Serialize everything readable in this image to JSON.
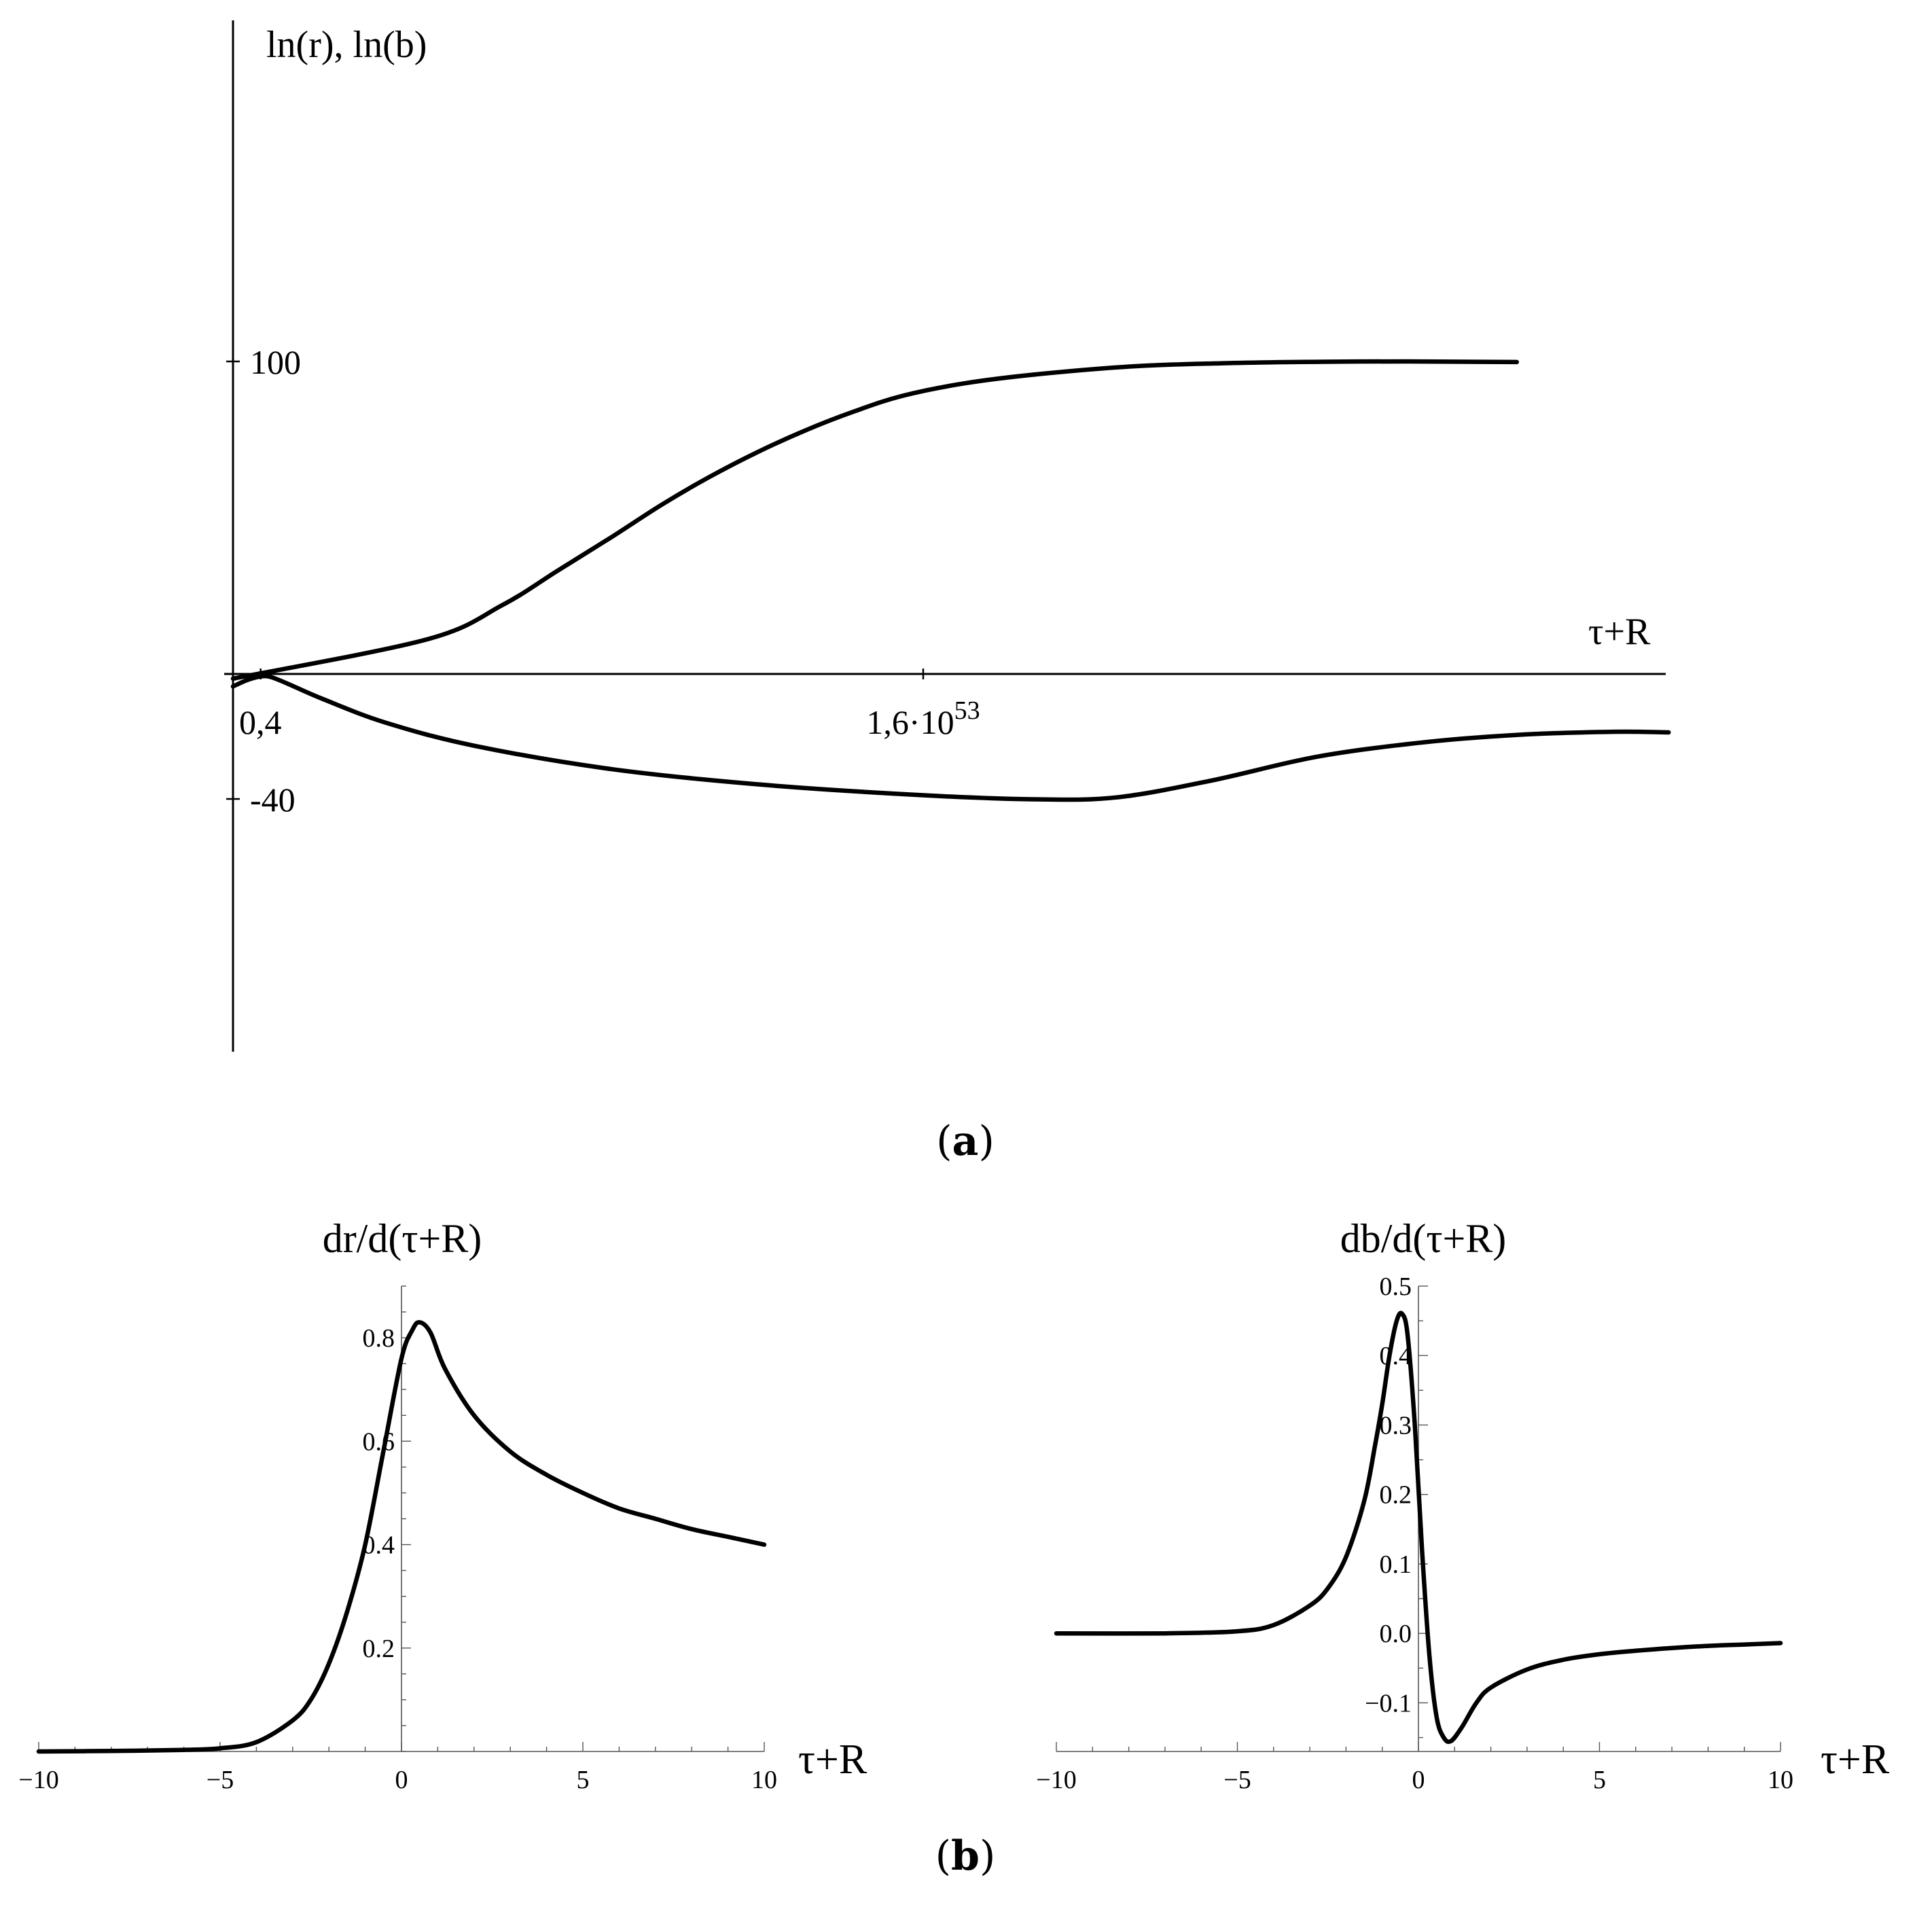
{
  "chart_data": [
    {
      "panel": "a",
      "type": "line",
      "caption": "(a)",
      "xlabel": "τ+R",
      "ylabel": "ln(r), ln(b)",
      "x_ticks": [
        {
          "value": 0.4,
          "label": "0,4"
        },
        {
          "value": 1.6e+53,
          "label_mantissa": "1,6·10",
          "label_exp": "53"
        }
      ],
      "y_ticks": [
        {
          "value": 100,
          "label": "100"
        },
        {
          "value": -40,
          "label": "-40"
        }
      ],
      "ylim": [
        -66,
        103
      ],
      "series": [
        {
          "points": [
            [
              0.0,
              -1.5
            ],
            [
              0.28,
              11.0
            ],
            [
              0.39,
              22.0
            ],
            [
              0.47,
              33.0
            ],
            [
              0.55,
              44.0
            ],
            [
              0.62,
              54.0
            ],
            [
              0.69,
              63.0
            ],
            [
              0.76,
              71.0
            ],
            [
              0.83,
              78.0
            ],
            [
              0.9,
              84.0
            ],
            [
              0.97,
              89.0
            ],
            [
              1.06,
              93.0
            ],
            [
              1.17,
              96.0
            ],
            [
              1.31,
              98.5
            ],
            [
              1.45,
              99.5
            ],
            [
              1.58,
              99.9
            ],
            [
              1.7,
              100.0
            ],
            [
              1.86,
              99.8
            ]
          ]
        },
        {
          "points": [
            [
              0.0,
              -4.0
            ],
            [
              0.02,
              -2.0
            ],
            [
              0.04,
              -0.8
            ],
            [
              0.055,
              -1.0
            ],
            [
              0.08,
              -3.2
            ],
            [
              0.13,
              -8.0
            ],
            [
              0.22,
              -15.5
            ],
            [
              0.35,
              -23.0
            ],
            [
              0.55,
              -30.5
            ],
            [
              0.77,
              -35.5
            ],
            [
              1.0,
              -38.8
            ],
            [
              1.16,
              -40.1
            ],
            [
              1.28,
              -39.5
            ],
            [
              1.42,
              -34.0
            ],
            [
              1.57,
              -26.5
            ],
            [
              1.72,
              -22.0
            ],
            [
              1.86,
              -19.5
            ],
            [
              2.0,
              -18.5
            ],
            [
              2.08,
              -18.7
            ]
          ]
        }
      ]
    },
    {
      "panel": "b-left",
      "type": "line",
      "title": "dr/d(τ+R)",
      "xlabel": "τ+R",
      "xlim": [
        -10,
        10
      ],
      "ylim": [
        0,
        0.9
      ],
      "x_ticks": [
        -10,
        -5,
        0,
        5,
        10
      ],
      "x_tick_labels": [
        "−10",
        "−5",
        "0",
        "5",
        "10"
      ],
      "y_ticks": [
        0.2,
        0.4,
        0.6,
        0.8
      ],
      "y_tick_labels": [
        "0.2",
        "0.4",
        "0.6",
        "0.8"
      ],
      "series": [
        {
          "points": [
            [
              -10,
              0.0
            ],
            [
              -8,
              0.001
            ],
            [
              -6,
              0.003
            ],
            [
              -5,
              0.006
            ],
            [
              -4,
              0.018
            ],
            [
              -3,
              0.06
            ],
            [
              -2.5,
              0.1
            ],
            [
              -2,
              0.17
            ],
            [
              -1.5,
              0.27
            ],
            [
              -1,
              0.4
            ],
            [
              -0.5,
              0.58
            ],
            [
              0,
              0.76
            ],
            [
              0.3,
              0.815
            ],
            [
              0.5,
              0.83
            ],
            [
              0.8,
              0.81
            ],
            [
              1.2,
              0.74
            ],
            [
              2,
              0.65
            ],
            [
              3,
              0.58
            ],
            [
              4,
              0.535
            ],
            [
              5,
              0.5
            ],
            [
              6,
              0.47
            ],
            [
              7,
              0.45
            ],
            [
              8,
              0.43
            ],
            [
              9,
              0.415
            ],
            [
              10,
              0.4
            ]
          ]
        }
      ]
    },
    {
      "panel": "b-right",
      "type": "line",
      "title": "db/d(τ+R)",
      "xlabel": "τ+R",
      "xlim": [
        -10,
        10
      ],
      "ylim": [
        -0.17,
        0.5
      ],
      "x_ticks": [
        -10,
        -5,
        0,
        5,
        10
      ],
      "x_tick_labels": [
        "−10",
        "−5",
        "0",
        "5",
        "10"
      ],
      "y_ticks": [
        -0.1,
        0.0,
        0.1,
        0.2,
        0.3,
        0.4,
        0.5
      ],
      "y_tick_labels": [
        "−0.1",
        "0.0",
        "0.1",
        "0.2",
        "0.3",
        "0.4",
        "0.5"
      ],
      "series": [
        {
          "points": [
            [
              -10,
              0.0
            ],
            [
              -7,
              0.0
            ],
            [
              -5,
              0.003
            ],
            [
              -4,
              0.012
            ],
            [
              -3,
              0.04
            ],
            [
              -2.5,
              0.065
            ],
            [
              -2,
              0.11
            ],
            [
              -1.5,
              0.19
            ],
            [
              -1.2,
              0.27
            ],
            [
              -1,
              0.33
            ],
            [
              -0.8,
              0.4
            ],
            [
              -0.6,
              0.45
            ],
            [
              -0.45,
              0.46
            ],
            [
              -0.3,
              0.43
            ],
            [
              -0.1,
              0.3
            ],
            [
              0.1,
              0.12
            ],
            [
              0.3,
              -0.03
            ],
            [
              0.5,
              -0.12
            ],
            [
              0.7,
              -0.15
            ],
            [
              0.9,
              -0.155
            ],
            [
              1.2,
              -0.135
            ],
            [
              1.6,
              -0.1
            ],
            [
              2,
              -0.078
            ],
            [
              3,
              -0.052
            ],
            [
              4,
              -0.038
            ],
            [
              5,
              -0.03
            ],
            [
              6,
              -0.025
            ],
            [
              7,
              -0.021
            ],
            [
              8,
              -0.018
            ],
            [
              9,
              -0.016
            ],
            [
              10,
              -0.014
            ]
          ]
        }
      ]
    }
  ],
  "captions": {
    "a": "(a)",
    "b": "(b)"
  }
}
